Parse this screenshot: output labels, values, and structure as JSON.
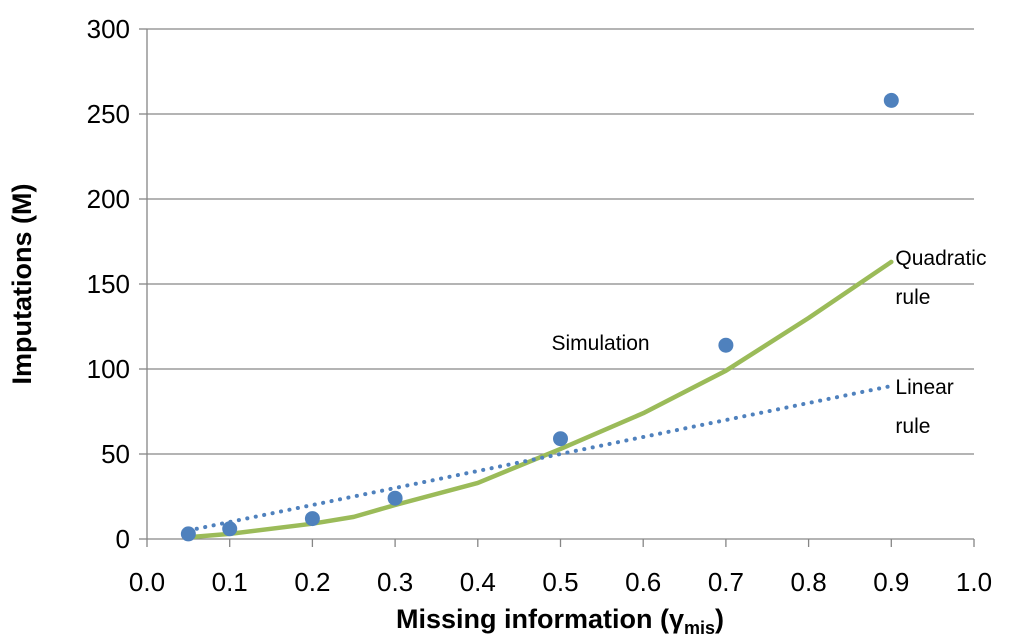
{
  "chart_data": {
    "type": "line",
    "title": "",
    "xlabel": "Missing information (",
    "xlabel_symbol": "γ",
    "xlabel_subscript": "mis",
    "xlabel_close": ")",
    "ylabel": "Imputations (M)",
    "xlim": [
      0.0,
      1.0
    ],
    "ylim": [
      0,
      300
    ],
    "x_ticks": [
      0.0,
      0.1,
      0.2,
      0.3,
      0.4,
      0.5,
      0.6,
      0.7,
      0.8,
      0.9,
      1.0
    ],
    "x_tick_labels": [
      "0.0",
      "0.1",
      "0.2",
      "0.3",
      "0.4",
      "0.5",
      "0.6",
      "0.7",
      "0.8",
      "0.9",
      "1.0"
    ],
    "y_ticks": [
      0,
      50,
      100,
      150,
      200,
      250,
      300
    ],
    "y_tick_labels": [
      "0",
      "50",
      "100",
      "150",
      "200",
      "250",
      "300"
    ],
    "grid": "horizontal",
    "legend": "none",
    "series": [
      {
        "key": "simulation",
        "type": "scatter",
        "color": "#4F81BD",
        "x": [
          0.05,
          0.1,
          0.2,
          0.3,
          0.5,
          0.7,
          0.9
        ],
        "y": [
          3,
          6,
          12,
          24,
          59,
          114,
          258
        ]
      },
      {
        "key": "quadratic",
        "type": "line",
        "style": "solid",
        "color": "#9BBB59",
        "x": [
          0.05,
          0.1,
          0.2,
          0.25,
          0.3,
          0.4,
          0.5,
          0.6,
          0.7,
          0.8,
          0.9
        ],
        "y": [
          1,
          3,
          9,
          13,
          20,
          33,
          53,
          74,
          99,
          130,
          163
        ]
      },
      {
        "key": "linear",
        "type": "line",
        "style": "dotted",
        "color": "#4F81BD",
        "x": [
          0.05,
          0.9
        ],
        "y": [
          5,
          90
        ]
      }
    ],
    "annotations": [
      {
        "key": "simulation",
        "text": "Simulation",
        "x": 0.5,
        "y": 116
      },
      {
        "key": "quadratic_1",
        "text": "Quadratic",
        "x": 0.905,
        "y": 166
      },
      {
        "key": "quadratic_2",
        "text": "rule",
        "x": 0.905,
        "y": 143
      },
      {
        "key": "linear_1",
        "text": "Linear",
        "x": 0.905,
        "y": 90
      },
      {
        "key": "linear_2",
        "text": "rule",
        "x": 0.905,
        "y": 67
      }
    ]
  }
}
